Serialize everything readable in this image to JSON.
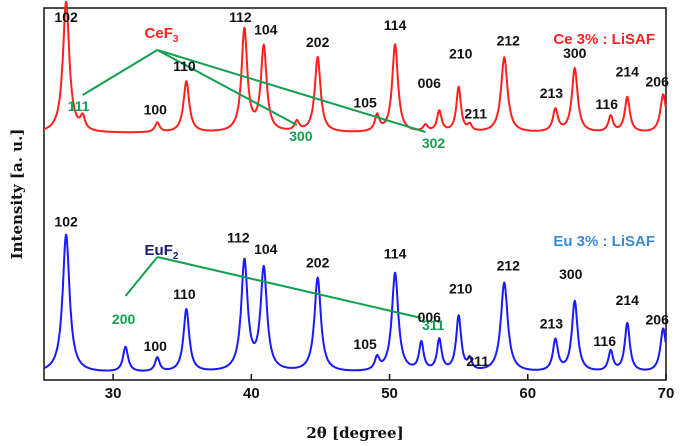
{
  "chart_data": {
    "type": "line",
    "xlabel": "2θ [degree]",
    "ylabel": "Intensity [a. u.]",
    "xlim": [
      25,
      70
    ],
    "x_ticks": [
      "30",
      "40",
      "50",
      "60",
      "70"
    ],
    "grid": false,
    "colors": {
      "red": "#ff2020",
      "blue": "#1a1aff",
      "green": "#10a050",
      "label_red": "#ff2020",
      "label_blue": "#3a8ad8",
      "label_navy": "#1a1a6e",
      "impurity_green": "#10a050"
    },
    "series": [
      {
        "name": "Ce 3% : LiSAF",
        "color": "#ff2020",
        "baseline": 0.18,
        "peaks": [
          {
            "x": 26.6,
            "h": 0.82,
            "w": 0.28
          },
          {
            "x": 27.8,
            "h": 0.08,
            "w": 0.2
          },
          {
            "x": 33.2,
            "h": 0.06,
            "w": 0.2
          },
          {
            "x": 35.3,
            "h": 0.32,
            "w": 0.25
          },
          {
            "x": 39.5,
            "h": 0.64,
            "w": 0.25
          },
          {
            "x": 40.9,
            "h": 0.53,
            "w": 0.25
          },
          {
            "x": 43.3,
            "h": 0.06,
            "w": 0.2
          },
          {
            "x": 44.8,
            "h": 0.47,
            "w": 0.25
          },
          {
            "x": 49.1,
            "h": 0.1,
            "w": 0.2
          },
          {
            "x": 50.4,
            "h": 0.55,
            "w": 0.25
          },
          {
            "x": 52.6,
            "h": 0.04,
            "w": 0.2
          },
          {
            "x": 53.6,
            "h": 0.13,
            "w": 0.2
          },
          {
            "x": 55.0,
            "h": 0.28,
            "w": 0.2
          },
          {
            "x": 55.8,
            "h": 0.04,
            "w": 0.18
          },
          {
            "x": 58.3,
            "h": 0.47,
            "w": 0.28
          },
          {
            "x": 62.0,
            "h": 0.14,
            "w": 0.22
          },
          {
            "x": 63.4,
            "h": 0.4,
            "w": 0.25
          },
          {
            "x": 66.0,
            "h": 0.1,
            "w": 0.2
          },
          {
            "x": 67.2,
            "h": 0.22,
            "w": 0.22
          },
          {
            "x": 69.8,
            "h": 0.24,
            "w": 0.25
          }
        ],
        "peak_labels": [
          {
            "text": "102",
            "x": 26.6
          },
          {
            "text": "100",
            "x": 33.2
          },
          {
            "text": "110",
            "x": 35.3
          },
          {
            "text": "112",
            "x": 39.5
          },
          {
            "text": "104",
            "x": 40.9
          },
          {
            "text": "202",
            "x": 44.8
          },
          {
            "text": "105",
            "x": 49.1
          },
          {
            "text": "114",
            "x": 50.4
          },
          {
            "text": "006",
            "x": 53.6
          },
          {
            "text": "210",
            "x": 55.0
          },
          {
            "text": "211",
            "x": 55.8
          },
          {
            "text": "212",
            "x": 58.3
          },
          {
            "text": "213",
            "x": 62.0
          },
          {
            "text": "300",
            "x": 63.4
          },
          {
            "text": "116",
            "x": 66.0
          },
          {
            "text": "214",
            "x": 67.2
          },
          {
            "text": "206",
            "x": 69.8
          }
        ]
      },
      {
        "name": "Eu 3% : LiSAF",
        "color": "#1a1aff",
        "baseline": 0.0,
        "peaks": [
          {
            "x": 26.6,
            "h": 0.88,
            "w": 0.3
          },
          {
            "x": 30.9,
            "h": 0.16,
            "w": 0.22
          },
          {
            "x": 33.2,
            "h": 0.09,
            "w": 0.2
          },
          {
            "x": 35.3,
            "h": 0.4,
            "w": 0.25
          },
          {
            "x": 39.5,
            "h": 0.7,
            "w": 0.28
          },
          {
            "x": 40.9,
            "h": 0.65,
            "w": 0.28
          },
          {
            "x": 44.8,
            "h": 0.6,
            "w": 0.28
          },
          {
            "x": 49.1,
            "h": 0.08,
            "w": 0.2
          },
          {
            "x": 50.4,
            "h": 0.63,
            "w": 0.28
          },
          {
            "x": 52.3,
            "h": 0.18,
            "w": 0.2
          },
          {
            "x": 53.6,
            "h": 0.2,
            "w": 0.2
          },
          {
            "x": 55.0,
            "h": 0.35,
            "w": 0.22
          },
          {
            "x": 55.8,
            "h": 0.07,
            "w": 0.18
          },
          {
            "x": 58.3,
            "h": 0.57,
            "w": 0.3
          },
          {
            "x": 62.0,
            "h": 0.2,
            "w": 0.22
          },
          {
            "x": 63.4,
            "h": 0.45,
            "w": 0.25
          },
          {
            "x": 66.0,
            "h": 0.13,
            "w": 0.2
          },
          {
            "x": 67.2,
            "h": 0.31,
            "w": 0.22
          },
          {
            "x": 69.8,
            "h": 0.28,
            "w": 0.25
          }
        ],
        "peak_labels": [
          {
            "text": "102",
            "x": 26.6
          },
          {
            "text": "100",
            "x": 33.2
          },
          {
            "text": "110",
            "x": 35.3
          },
          {
            "text": "112",
            "x": 39.5
          },
          {
            "text": "104",
            "x": 40.9
          },
          {
            "text": "202",
            "x": 44.8
          },
          {
            "text": "105",
            "x": 49.1
          },
          {
            "text": "114",
            "x": 50.4
          },
          {
            "text": "006",
            "x": 53.6
          },
          {
            "text": "210",
            "x": 55.0
          },
          {
            "text": "211",
            "x": 55.8
          },
          {
            "text": "212",
            "x": 58.3
          },
          {
            "text": "213",
            "x": 62.0
          },
          {
            "text": "300",
            "x": 63.4
          },
          {
            "text": "116",
            "x": 66.0
          },
          {
            "text": "214",
            "x": 67.2
          },
          {
            "text": "206",
            "x": 69.8
          }
        ]
      }
    ],
    "impurity_annotations": [
      {
        "compound": "CeF",
        "subscript": "3",
        "series": "Ce 3% : LiSAF",
        "peaks": [
          {
            "text": "111",
            "x": 27.8
          },
          {
            "text": "300",
            "x": 43.3
          },
          {
            "text": "302",
            "x": 52.6
          }
        ]
      },
      {
        "compound": "EuF",
        "subscript": "2",
        "series": "Eu 3% : LiSAF",
        "peaks": [
          {
            "text": "200",
            "x": 30.9
          },
          {
            "text": "311",
            "x": 52.3
          }
        ]
      }
    ]
  }
}
